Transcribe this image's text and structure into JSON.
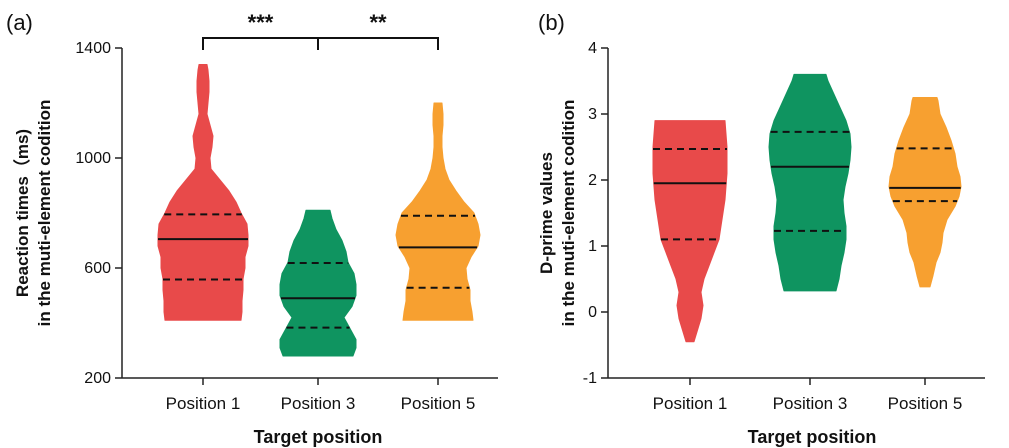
{
  "chart_data": [
    {
      "panel_label": "(a)",
      "type": "violin",
      "xlabel": "Target position",
      "ylabel_line1": "Reaction times（ms)",
      "ylabel_line2": "in the muti-element codition",
      "ylim": [
        200,
        1400
      ],
      "yticks": [
        200,
        600,
        1000,
        1400
      ],
      "categories": [
        "Position 1",
        "Position 3",
        "Position 5"
      ],
      "series": [
        {
          "color": "#e84a4a",
          "median": 705,
          "q1": 558,
          "q3": 795,
          "density": [
            [
              410,
              38
            ],
            [
              440,
              39
            ],
            [
              480,
              39
            ],
            [
              520,
              40
            ],
            [
              560,
              40
            ],
            [
              600,
              42
            ],
            [
              640,
              42
            ],
            [
              680,
              45
            ],
            [
              720,
              45
            ],
            [
              760,
              44
            ],
            [
              800,
              38
            ],
            [
              840,
              33
            ],
            [
              880,
              26
            ],
            [
              920,
              17
            ],
            [
              960,
              8
            ],
            [
              1000,
              7
            ],
            [
              1040,
              9
            ],
            [
              1080,
              10
            ],
            [
              1120,
              7
            ],
            [
              1160,
              4
            ],
            [
              1200,
              5
            ],
            [
              1240,
              6
            ],
            [
              1280,
              6
            ],
            [
              1320,
              5
            ],
            [
              1340,
              4
            ]
          ]
        },
        {
          "color": "#0f9460",
          "median": 490,
          "q1": 383,
          "q3": 618,
          "density": [
            [
              280,
              35
            ],
            [
              310,
              38
            ],
            [
              340,
              38
            ],
            [
              380,
              32
            ],
            [
              420,
              26
            ],
            [
              460,
              34
            ],
            [
              500,
              38
            ],
            [
              540,
              38
            ],
            [
              580,
              36
            ],
            [
              620,
              30
            ],
            [
              660,
              28
            ],
            [
              700,
              24
            ],
            [
              740,
              18
            ],
            [
              780,
              14
            ],
            [
              810,
              12
            ]
          ]
        },
        {
          "color": "#f7a030",
          "median": 675,
          "q1": 528,
          "q3": 790,
          "density": [
            [
              410,
              35
            ],
            [
              440,
              34
            ],
            [
              480,
              32
            ],
            [
              520,
              32
            ],
            [
              560,
              29
            ],
            [
              600,
              28
            ],
            [
              640,
              33
            ],
            [
              680,
              40
            ],
            [
              720,
              42
            ],
            [
              760,
              40
            ],
            [
              800,
              36
            ],
            [
              840,
              26
            ],
            [
              880,
              18
            ],
            [
              920,
              11
            ],
            [
              960,
              7
            ],
            [
              1000,
              5
            ],
            [
              1040,
              4
            ],
            [
              1080,
              4
            ],
            [
              1120,
              5
            ],
            [
              1160,
              5
            ],
            [
              1200,
              4
            ]
          ]
        }
      ],
      "significance": [
        {
          "from": "Position 1",
          "to": "Position 3",
          "label": "***"
        },
        {
          "from": "Position 3",
          "to": "Position 5",
          "label": "**"
        }
      ]
    },
    {
      "panel_label": "(b)",
      "type": "violin",
      "xlabel": "Target position",
      "ylabel_line1": "D-prime values",
      "ylabel_line2": "in the muti-element codition",
      "ylim": [
        -1,
        4
      ],
      "yticks": [
        -1,
        0,
        1,
        2,
        3,
        4
      ],
      "categories": [
        "Position 1",
        "Position 3",
        "Position 5"
      ],
      "series": [
        {
          "color": "#e84a4a",
          "median": 1.95,
          "q1": 1.1,
          "q3": 2.47,
          "density": [
            [
              -0.45,
              4
            ],
            [
              -0.3,
              7
            ],
            [
              -0.1,
              11
            ],
            [
              0.1,
              13
            ],
            [
              0.3,
              11
            ],
            [
              0.5,
              14
            ],
            [
              0.7,
              19
            ],
            [
              0.9,
              24
            ],
            [
              1.1,
              29
            ],
            [
              1.3,
              31
            ],
            [
              1.5,
              33
            ],
            [
              1.7,
              35
            ],
            [
              1.9,
              36
            ],
            [
              2.1,
              37
            ],
            [
              2.3,
              37
            ],
            [
              2.5,
              37
            ],
            [
              2.7,
              36
            ],
            [
              2.9,
              35
            ]
          ]
        },
        {
          "color": "#0f9460",
          "median": 2.2,
          "q1": 1.23,
          "q3": 2.73,
          "density": [
            [
              0.32,
              26
            ],
            [
              0.5,
              29
            ],
            [
              0.7,
              31
            ],
            [
              0.9,
              34
            ],
            [
              1.1,
              36
            ],
            [
              1.3,
              36
            ],
            [
              1.5,
              34
            ],
            [
              1.7,
              33
            ],
            [
              1.9,
              35
            ],
            [
              2.1,
              38
            ],
            [
              2.3,
              40
            ],
            [
              2.5,
              41
            ],
            [
              2.7,
              40
            ],
            [
              2.9,
              36
            ],
            [
              3.1,
              30
            ],
            [
              3.3,
              24
            ],
            [
              3.5,
              18
            ],
            [
              3.6,
              16
            ]
          ]
        },
        {
          "color": "#f7a030",
          "median": 1.88,
          "q1": 1.68,
          "q3": 2.48,
          "density": [
            [
              0.38,
              5
            ],
            [
              0.55,
              8
            ],
            [
              0.75,
              11
            ],
            [
              0.9,
              15
            ],
            [
              1.05,
              17
            ],
            [
              1.2,
              18
            ],
            [
              1.4,
              22
            ],
            [
              1.6,
              30
            ],
            [
              1.75,
              34
            ],
            [
              1.9,
              36
            ],
            [
              2.05,
              35
            ],
            [
              2.2,
              32
            ],
            [
              2.4,
              30
            ],
            [
              2.6,
              26
            ],
            [
              2.8,
              21
            ],
            [
              3.0,
              15
            ],
            [
              3.2,
              13
            ],
            [
              3.25,
              12
            ]
          ]
        }
      ]
    }
  ]
}
